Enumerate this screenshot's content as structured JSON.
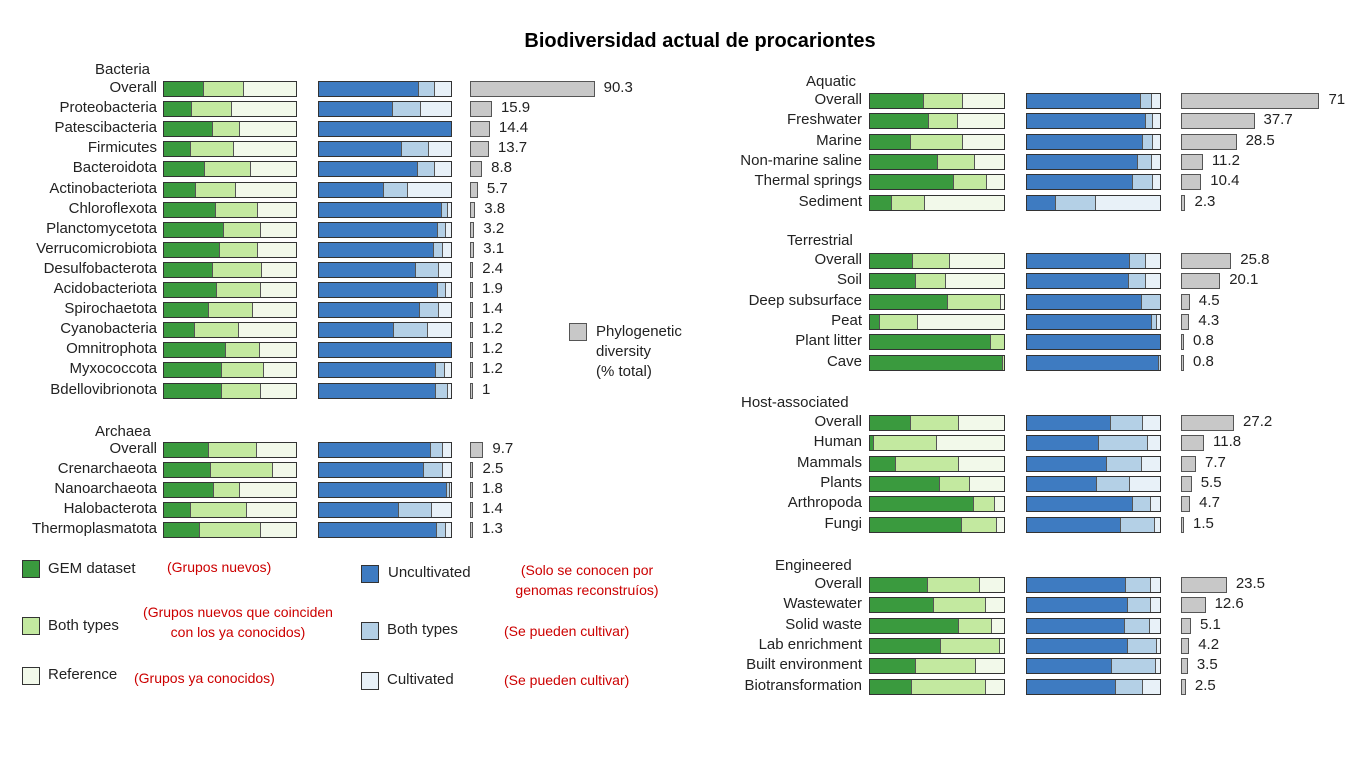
{
  "title": "Biodiversidad actual de procariontes",
  "colors": {
    "gem": "#3a9a3e",
    "gem_both": "#c3e9a0",
    "gem_ref": "#f2f9ea",
    "unc": "#3e7bc1",
    "unc_both": "#b4d0e6",
    "unc_cult": "#e8f1f8",
    "phylo": "#c8c8c8"
  },
  "chart_data": {
    "type": "bar",
    "panels": [
      {
        "name": "Bacteria",
        "categories": [
          {
            "label": "Overall",
            "gem": [
              30,
              30,
              40
            ],
            "cult": [
              76,
              12,
              12
            ],
            "pd": 90.3
          },
          {
            "label": "Proteobacteria",
            "gem": [
              21,
              30,
              49
            ],
            "cult": [
              56,
              21,
              23
            ],
            "pd": 15.9
          },
          {
            "label": "Patescibacteria",
            "gem": [
              37,
              20,
              43
            ],
            "cult": [
              100,
              0,
              0
            ],
            "pd": 14.4
          },
          {
            "label": "Firmicutes",
            "gem": [
              20,
              32,
              48
            ],
            "cult": [
              63,
              20,
              17
            ],
            "pd": 13.7
          },
          {
            "label": "Bacteroidota",
            "gem": [
              31,
              34,
              35
            ],
            "cult": [
              75,
              13,
              12
            ],
            "pd": 8.8
          },
          {
            "label": "Actinobacteriota",
            "gem": [
              24,
              30,
              46
            ],
            "cult": [
              49,
              18,
              33
            ],
            "pd": 5.7
          },
          {
            "label": "Chloroflexota",
            "gem": [
              39,
              32,
              29
            ],
            "cult": [
              94,
              4,
              2
            ],
            "pd": 3.8
          },
          {
            "label": "Planctomycetota",
            "gem": [
              45,
              28,
              27
            ],
            "cult": [
              91,
              5,
              4
            ],
            "pd": 3.2
          },
          {
            "label": "Verrucomicrobiota",
            "gem": [
              42,
              29,
              29
            ],
            "cult": [
              88,
              6,
              6
            ],
            "pd": 3.1
          },
          {
            "label": "Desulfobacterota",
            "gem": [
              37,
              37,
              26
            ],
            "cult": [
              74,
              17,
              9
            ],
            "pd": 2.4
          },
          {
            "label": "Acidobacteriota",
            "gem": [
              40,
              33,
              27
            ],
            "cult": [
              91,
              5,
              4
            ],
            "pd": 1.9
          },
          {
            "label": "Spirochaetota",
            "gem": [
              34,
              33,
              33
            ],
            "cult": [
              77,
              14,
              9
            ],
            "pd": 1.4
          },
          {
            "label": "Cyanobacteria",
            "gem": [
              23,
              33,
              44
            ],
            "cult": [
              57,
              25,
              18
            ],
            "pd": 1.2
          },
          {
            "label": "Omnitrophota",
            "gem": [
              47,
              25,
              28
            ],
            "cult": [
              100,
              0,
              0
            ],
            "pd": 1.2
          },
          {
            "label": "Myxococcota",
            "gem": [
              44,
              31,
              25
            ],
            "cult": [
              89,
              6,
              5
            ],
            "pd": 1.2
          },
          {
            "label": "Bdellovibrionota",
            "gem": [
              44,
              29,
              27
            ],
            "cult": [
              89,
              9,
              2
            ],
            "pd": 1
          }
        ]
      },
      {
        "name": "Archaea",
        "categories": [
          {
            "label": "Overall",
            "gem": [
              34,
              36,
              30
            ],
            "cult": [
              85,
              9,
              6
            ],
            "pd": 9.7
          },
          {
            "label": "Crenarchaeota",
            "gem": [
              35,
              47,
              18
            ],
            "cult": [
              80,
              14,
              6
            ],
            "pd": 2.5
          },
          {
            "label": "Nanoarchaeota",
            "gem": [
              38,
              19,
              43
            ],
            "cult": [
              98,
              1,
              1
            ],
            "pd": 1.8
          },
          {
            "label": "Halobacterota",
            "gem": [
              20,
              42,
              38
            ],
            "cult": [
              61,
              24,
              15
            ],
            "pd": 1.4
          },
          {
            "label": "Thermoplasmatota",
            "gem": [
              27,
              46,
              27
            ],
            "cult": [
              90,
              6,
              4
            ],
            "pd": 1.3
          }
        ]
      },
      {
        "name": "Aquatic",
        "categories": [
          {
            "label": "Overall",
            "gem": [
              40,
              29,
              31
            ],
            "cult": [
              86,
              8,
              6
            ],
            "pd": 71
          },
          {
            "label": "Freshwater",
            "gem": [
              44,
              21,
              35
            ],
            "cult": [
              90,
              5,
              5
            ],
            "pd": 37.7
          },
          {
            "label": "Marine",
            "gem": [
              30,
              39,
              31
            ],
            "cult": [
              88,
              7,
              5
            ],
            "pd": 28.5
          },
          {
            "label": "Non-marine saline",
            "gem": [
              51,
              27,
              22
            ],
            "cult": [
              84,
              10,
              6
            ],
            "pd": 11.2
          },
          {
            "label": "Thermal springs",
            "gem": [
              63,
              24,
              13
            ],
            "cult": [
              80,
              15,
              5
            ],
            "pd": 10.4
          },
          {
            "label": "Sediment",
            "gem": [
              16,
              24,
              60
            ],
            "cult": [
              21,
              30,
              49
            ],
            "pd": 2.3
          }
        ]
      },
      {
        "name": "Terrestrial",
        "categories": [
          {
            "label": "Overall",
            "gem": [
              32,
              27,
              41
            ],
            "cult": [
              78,
              11,
              11
            ],
            "pd": 25.8
          },
          {
            "label": "Soil",
            "gem": [
              34,
              22,
              44
            ],
            "cult": [
              77,
              12,
              11
            ],
            "pd": 20.1
          },
          {
            "label": "Deep subsurface",
            "gem": [
              58,
              40,
              2
            ],
            "cult": [
              86,
              14,
              0
            ],
            "pd": 4.5
          },
          {
            "label": "Peat",
            "gem": [
              7,
              28,
              65
            ],
            "cult": [
              95,
              3,
              2
            ],
            "pd": 4.3
          },
          {
            "label": "Plant litter",
            "gem": [
              90,
              10,
              0
            ],
            "cult": [
              100,
              0,
              0
            ],
            "pd": 0.8
          },
          {
            "label": "Cave",
            "gem": [
              99,
              1,
              0
            ],
            "cult": [
              99,
              1,
              0
            ],
            "pd": 0.8
          }
        ]
      },
      {
        "name": "Host-associated",
        "categories": [
          {
            "label": "Overall",
            "gem": [
              30,
              36,
              34
            ],
            "cult": [
              63,
              24,
              13
            ],
            "pd": 27.2
          },
          {
            "label": "Human",
            "gem": [
              2,
              47,
              51
            ],
            "cult": [
              54,
              37,
              9
            ],
            "pd": 11.8
          },
          {
            "label": "Mammals",
            "gem": [
              19,
              47,
              34
            ],
            "cult": [
              60,
              26,
              14
            ],
            "pd": 7.7
          },
          {
            "label": "Plants",
            "gem": [
              52,
              22,
              26
            ],
            "cult": [
              53,
              24,
              23
            ],
            "pd": 5.5
          },
          {
            "label": "Arthropoda",
            "gem": [
              78,
              15,
              7
            ],
            "cult": [
              80,
              13,
              7
            ],
            "pd": 4.7
          },
          {
            "label": "Fungi",
            "gem": [
              69,
              26,
              5
            ],
            "cult": [
              71,
              25,
              4
            ],
            "pd": 1.5
          }
        ]
      },
      {
        "name": "Engineered",
        "categories": [
          {
            "label": "Overall",
            "gem": [
              43,
              39,
              18
            ],
            "cult": [
              75,
              18,
              7
            ],
            "pd": 23.5
          },
          {
            "label": "Wastewater",
            "gem": [
              48,
              38,
              14
            ],
            "cult": [
              76,
              17,
              7
            ],
            "pd": 12.6
          },
          {
            "label": "Solid waste",
            "gem": [
              67,
              24,
              9
            ],
            "cult": [
              74,
              18,
              8
            ],
            "pd": 5.1
          },
          {
            "label": "Lab enrichment",
            "gem": [
              53,
              44,
              3
            ],
            "cult": [
              76,
              22,
              2
            ],
            "pd": 4.2
          },
          {
            "label": "Built environment",
            "gem": [
              34,
              45,
              21
            ],
            "cult": [
              64,
              33,
              3
            ],
            "pd": 3.5
          },
          {
            "label": "Biotransformation",
            "gem": [
              31,
              55,
              14
            ],
            "cult": [
              67,
              20,
              13
            ],
            "pd": 2.5
          }
        ]
      }
    ]
  },
  "legend": {
    "gem_dataset": "GEM dataset",
    "both_types_gem": "Both types",
    "reference": "Reference",
    "uncultivated": "Uncultivated",
    "both_types_cult": "Both types",
    "cultivated": "Cultivated",
    "phylo_line1": "Phylogenetic",
    "phylo_line2": "diversity",
    "phylo_line3": "(% total)"
  },
  "notes": {
    "gem": "(Grupos nuevos)",
    "both_line1": "(Grupos nuevos que coinciden",
    "both_line2": "con los ya conocidos)",
    "ref": "(Grupos ya conocidos)",
    "unc_line1": "(Solo se conocen por",
    "unc_line2": "genomas reconstruíos)",
    "both_cult": "(Se pueden cultivar)",
    "cult": "(Se pueden cultivar)"
  }
}
